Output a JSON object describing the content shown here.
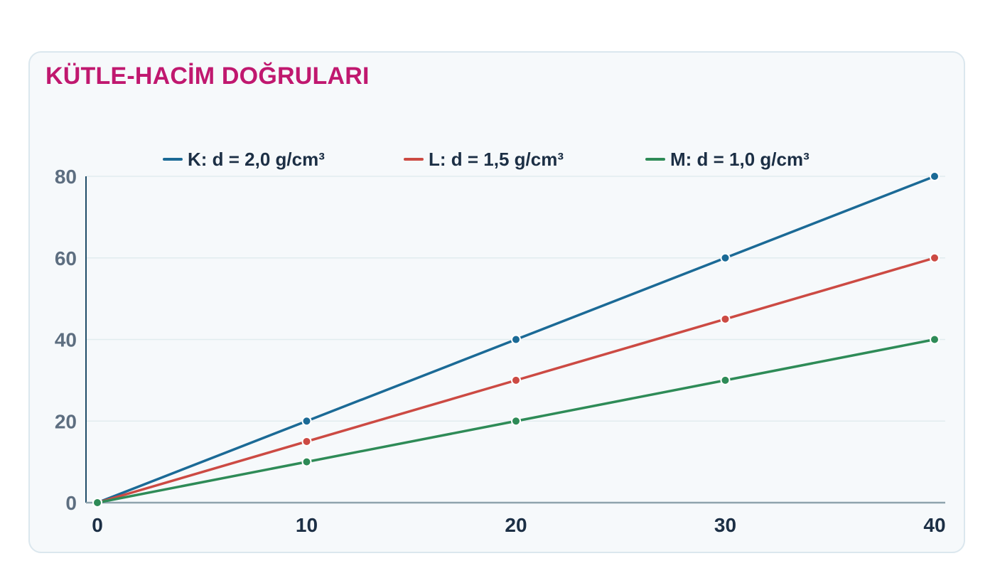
{
  "chart_data": {
    "type": "line",
    "title": "KÜTLE-HACİM DOĞRULARI",
    "xlabel": "",
    "ylabel": "",
    "x": [
      0,
      10,
      20,
      30,
      40
    ],
    "xlim": [
      0,
      40
    ],
    "ylim": [
      0,
      80
    ],
    "xticks": [
      "0",
      "10",
      "20",
      "30",
      "40"
    ],
    "yticks": [
      "0",
      "20",
      "40",
      "60",
      "80"
    ],
    "grid": true,
    "legend_position": "top",
    "series": [
      {
        "name": "K: d = 2,0 g/cm³",
        "color": "#1b6a96",
        "values": [
          0,
          20,
          40,
          60,
          80
        ]
      },
      {
        "name": "L: d = 1,5 g/cm³",
        "color": "#cc4a43",
        "values": [
          0,
          15,
          30,
          45,
          60
        ]
      },
      {
        "name": "M: d = 1,0 g/cm³",
        "color": "#2e8b57",
        "values": [
          0,
          10,
          20,
          30,
          40
        ]
      }
    ]
  }
}
